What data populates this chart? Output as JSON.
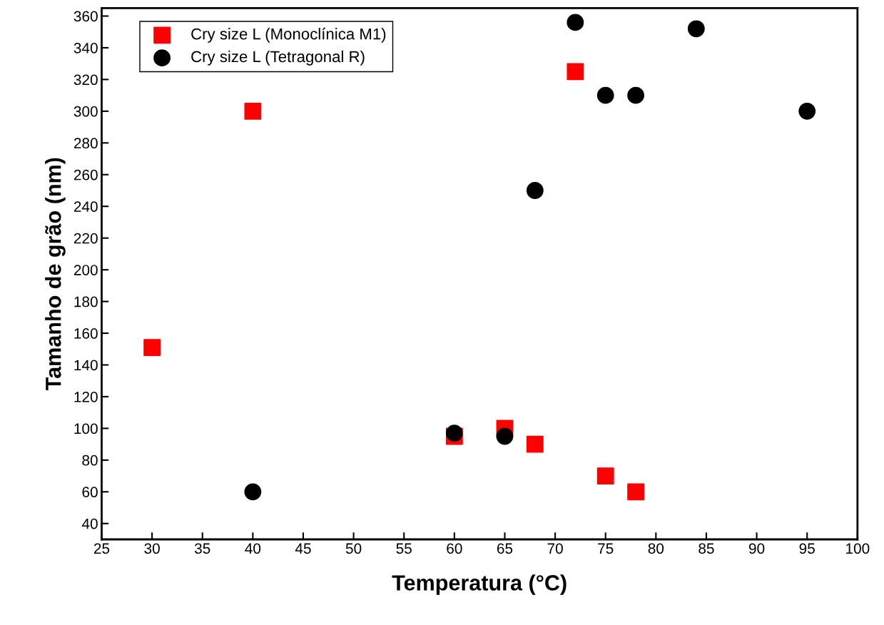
{
  "chart_data": {
    "type": "scatter",
    "xlabel": "Temperatura (°C)",
    "ylabel": "Tamanho de grão (nm)",
    "xlim": [
      25,
      100
    ],
    "xticks": [
      25,
      30,
      35,
      40,
      45,
      50,
      55,
      60,
      65,
      70,
      75,
      80,
      85,
      90,
      95,
      100
    ],
    "ylim": [
      30,
      365
    ],
    "yticks": [
      40,
      60,
      80,
      100,
      120,
      140,
      160,
      180,
      200,
      220,
      240,
      260,
      280,
      300,
      320,
      340,
      360
    ],
    "grid": false,
    "legend": "top left",
    "series": [
      {
        "name": "Cry size L (Monoclínica M1)",
        "color": "#ff0000",
        "marker": "square",
        "x": [
          30,
          40,
          60,
          65,
          68,
          72,
          75,
          78
        ],
        "values": [
          151,
          300,
          95,
          100,
          90,
          325,
          70,
          60
        ]
      },
      {
        "name": "Cry size L (Tetragonal R)",
        "color": "#000000",
        "marker": "circle",
        "x": [
          40,
          60,
          65,
          68,
          72,
          75,
          78,
          84,
          95
        ],
        "values": [
          60,
          97,
          95,
          250,
          356,
          310,
          310,
          352,
          300
        ]
      }
    ]
  }
}
